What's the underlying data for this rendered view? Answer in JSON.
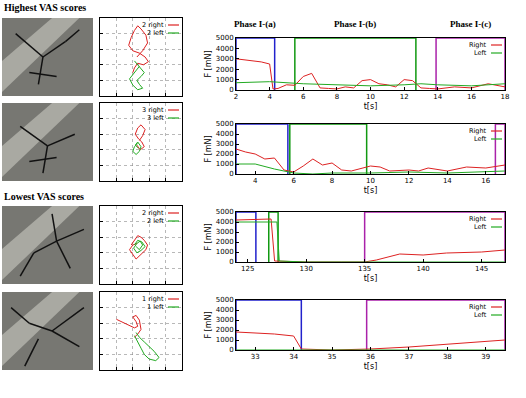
{
  "headings": [
    "Highest VAS scores",
    "Lowest VAS scores"
  ],
  "chart_data": [
    {
      "type": "line",
      "tick_labels": false,
      "grid": true,
      "legend": "upper right",
      "xlim": [
        0,
        10
      ],
      "ylim": [
        0,
        10
      ],
      "xticks": [
        0,
        2,
        4,
        6,
        8,
        10
      ],
      "yticks": [
        0,
        2,
        4,
        6,
        8,
        10
      ],
      "series": [
        {
          "name": "2 right",
          "color": "#dd2222",
          "x": [
            4.5,
            5.2,
            5.8,
            5.6,
            5.0,
            4.6,
            4.2,
            3.8,
            3.5,
            4.0,
            4.8,
            5.5,
            5.9,
            5.3,
            4.6,
            4.2,
            4.0
          ],
          "values": [
            5.0,
            5.8,
            6.8,
            7.8,
            8.6,
            9.0,
            8.4,
            7.5,
            6.5,
            5.8,
            5.5,
            5.0,
            4.4,
            4.0,
            4.2,
            3.6,
            3.0
          ]
        },
        {
          "name": "2 left",
          "color": "#22aa22",
          "x": [
            4.2,
            4.6,
            5.0,
            5.4,
            5.0,
            4.5,
            4.8,
            5.2,
            4.6,
            4.0,
            3.6,
            4.2,
            4.8
          ],
          "values": [
            4.5,
            4.0,
            3.5,
            3.0,
            2.5,
            2.0,
            1.5,
            1.0,
            0.8,
            1.4,
            2.2,
            3.0,
            3.8
          ]
        }
      ]
    },
    {
      "type": "line",
      "x_label": "t[s]",
      "y_label": "F [mN]",
      "grid": false,
      "legend": "upper right",
      "xlim": [
        2,
        18
      ],
      "xticks": [
        2,
        4,
        6,
        8,
        10,
        12,
        14,
        16,
        18
      ],
      "ylim": [
        0,
        5000
      ],
      "yticks": [
        0,
        1000,
        2000,
        3000,
        4000,
        5000
      ],
      "phases": [
        {
          "label": "Phase I-(a)",
          "color": "#2222cc",
          "start": 2,
          "end": 4.3
        },
        {
          "label": "Phase I-(b)",
          "color": "#119911",
          "start": 5.5,
          "end": 12.7
        },
        {
          "label": "Phase I-(c)",
          "color": "#aa22aa",
          "start": 13.9,
          "end": 18
        }
      ],
      "series": [
        {
          "name": "Right",
          "color": "#dd2222",
          "x": [
            2,
            2.5,
            3,
            3.5,
            4,
            4.2,
            4.5,
            5,
            5.5,
            6,
            6.5,
            7,
            7.5,
            8,
            8.5,
            9,
            9.5,
            10,
            10.5,
            11,
            11.5,
            12,
            12.5,
            13,
            13.5,
            14,
            15,
            16,
            17,
            18
          ],
          "values": [
            3000,
            2900,
            2800,
            2700,
            2500,
            100,
            150,
            500,
            450,
            1300,
            1600,
            200,
            150,
            100,
            300,
            200,
            900,
            1000,
            600,
            500,
            300,
            1000,
            900,
            200,
            150,
            100,
            300,
            200,
            600,
            300
          ]
        },
        {
          "name": "Left",
          "color": "#22aa22",
          "x": [
            2,
            4,
            6,
            8,
            10,
            12,
            13,
            14,
            16,
            18
          ],
          "values": [
            700,
            800,
            600,
            500,
            400,
            500,
            600,
            500,
            400,
            600
          ]
        }
      ]
    },
    {
      "type": "line",
      "tick_labels": false,
      "grid": true,
      "legend": "upper right",
      "xlim": [
        0,
        10
      ],
      "ylim": [
        0,
        10
      ],
      "xticks": [
        0,
        2,
        4,
        6,
        8,
        10
      ],
      "yticks": [
        0,
        2,
        4,
        6,
        8,
        10
      ],
      "series": [
        {
          "name": "3 right",
          "color": "#dd2222",
          "x": [
            4.8,
            5.2,
            5.5,
            5.0,
            4.6,
            4.3,
            4.7,
            5.1,
            5.4,
            4.9,
            4.5
          ],
          "values": [
            5.2,
            5.8,
            6.6,
            7.2,
            6.8,
            6.0,
            5.4,
            5.0,
            4.4,
            4.0,
            4.6
          ]
        },
        {
          "name": "3 left",
          "color": "#22aa22",
          "x": [
            4.6,
            4.2,
            4.0,
            4.4,
            4.8,
            5.0,
            4.6,
            4.3,
            4.7
          ],
          "values": [
            4.8,
            4.4,
            3.8,
            3.4,
            3.8,
            4.4,
            5.0,
            4.6,
            4.2
          ]
        }
      ]
    },
    {
      "type": "line",
      "x_label": "t[s]",
      "y_label": "F [mN]",
      "grid": false,
      "legend": "upper right",
      "xlim": [
        3,
        17
      ],
      "xticks": [
        4,
        6,
        8,
        10,
        12,
        14,
        16
      ],
      "ylim": [
        0,
        5000
      ],
      "yticks": [
        0,
        1000,
        2000,
        3000,
        4000,
        5000
      ],
      "phases": [
        {
          "color": "#2222cc",
          "start": 3,
          "end": 5.7
        },
        {
          "color": "#119911",
          "start": 5.8,
          "end": 9.8
        },
        {
          "color": "#aa22aa",
          "start": 16.5,
          "end": 17
        }
      ],
      "series": [
        {
          "name": "Right",
          "color": "#dd2222",
          "x": [
            3,
            3.5,
            4,
            4.5,
            5,
            5.5,
            6,
            6.5,
            7,
            7.5,
            8,
            8.5,
            9,
            10,
            10.5,
            11,
            12,
            12.5,
            13,
            14,
            15,
            16,
            17
          ],
          "values": [
            2500,
            2200,
            2000,
            1500,
            1600,
            400,
            200,
            800,
            1500,
            900,
            1100,
            400,
            300,
            800,
            700,
            300,
            400,
            300,
            600,
            300,
            700,
            600,
            900
          ]
        },
        {
          "name": "Left",
          "color": "#22aa22",
          "x": [
            3,
            4,
            5,
            6,
            7,
            8,
            10,
            12,
            14,
            16,
            17
          ],
          "values": [
            1000,
            1000,
            500,
            100,
            0,
            100,
            100,
            200,
            100,
            200,
            300
          ]
        }
      ]
    },
    {
      "type": "line",
      "tick_labels": false,
      "grid": true,
      "legend": "upper right",
      "xlim": [
        0,
        10
      ],
      "ylim": [
        0,
        10
      ],
      "xticks": [
        0,
        2,
        4,
        6,
        8,
        10
      ],
      "yticks": [
        0,
        2,
        4,
        6,
        8,
        10
      ],
      "series": [
        {
          "name": "2 right",
          "color": "#dd2222",
          "x": [
            3.8,
            4.2,
            4.6,
            5.0,
            5.4,
            5.8,
            5.6,
            5.2,
            4.8,
            4.4,
            4.0,
            3.6,
            4.0,
            4.5
          ],
          "values": [
            5.0,
            5.6,
            6.2,
            6.0,
            5.6,
            5.0,
            4.4,
            4.0,
            3.6,
            3.2,
            3.8,
            4.4,
            5.0,
            5.2
          ]
        },
        {
          "name": "2 left",
          "color": "#22aa22",
          "x": [
            4.4,
            4.8,
            5.2,
            4.9,
            4.5,
            4.1,
            4.5,
            5.0,
            5.5,
            5.1,
            4.6,
            4.2
          ],
          "values": [
            4.8,
            4.4,
            5.0,
            5.5,
            5.2,
            4.6,
            4.0,
            4.3,
            4.8,
            5.4,
            5.6,
            5.0
          ]
        }
      ]
    },
    {
      "type": "line",
      "x_label": "t[s]",
      "y_label": "F [mN]",
      "grid": false,
      "legend": "upper right",
      "xlim": [
        124,
        147
      ],
      "xticks": [
        125,
        130,
        135,
        140,
        145
      ],
      "ylim": [
        0,
        5000
      ],
      "yticks": [
        0,
        1000,
        2000,
        3000,
        4000,
        5000
      ],
      "phases": [
        {
          "color": "#2222cc",
          "start": 124,
          "end": 125.7
        },
        {
          "color": "#119911",
          "start": 126.8,
          "end": 127.6
        },
        {
          "color": "#aa22aa",
          "start": 135,
          "end": 147
        }
      ],
      "series": [
        {
          "name": "Right",
          "color": "#dd2222",
          "x": [
            124,
            127,
            127.3,
            130,
            133,
            135,
            136,
            138,
            140,
            142,
            145,
            147
          ],
          "values": [
            4200,
            4300,
            100,
            0,
            0,
            0,
            200,
            800,
            700,
            900,
            1000,
            1200
          ]
        },
        {
          "name": "Left",
          "color": "#22aa22",
          "x": [
            124,
            127.5,
            127.7,
            130,
            135,
            140,
            147
          ],
          "values": [
            4000,
            4000,
            100,
            0,
            0,
            0,
            0
          ]
        }
      ]
    },
    {
      "type": "line",
      "tick_labels": false,
      "grid": true,
      "legend": "upper right",
      "xlim": [
        0,
        10
      ],
      "ylim": [
        0,
        10
      ],
      "xticks": [
        0,
        2,
        4,
        6,
        8,
        10
      ],
      "yticks": [
        0,
        2,
        4,
        6,
        8,
        10
      ],
      "series": [
        {
          "name": "1 right",
          "color": "#dd2222",
          "x": [
            2.0,
            2.6,
            3.2,
            3.8,
            4.2,
            4.6,
            4.4,
            4.0,
            4.4,
            4.8,
            5.0,
            4.6,
            4.2
          ],
          "values": [
            6.5,
            6.2,
            5.8,
            5.6,
            5.4,
            5.6,
            6.2,
            6.8,
            7.0,
            6.4,
            5.2,
            4.6,
            4.2
          ]
        },
        {
          "name": "1 left",
          "color": "#22aa22",
          "x": [
            4.4,
            4.8,
            5.4,
            6.0,
            6.6,
            7.2,
            6.8,
            6.0,
            5.4,
            5.0,
            4.6,
            4.2
          ],
          "values": [
            4.8,
            4.2,
            3.6,
            3.0,
            2.4,
            1.6,
            1.2,
            1.4,
            2.0,
            2.8,
            3.6,
            4.4
          ]
        }
      ]
    },
    {
      "type": "line",
      "x_label": "t[s]",
      "y_label": "F [mN]",
      "grid": false,
      "legend": "upper right",
      "xlim": [
        32.5,
        39.5
      ],
      "xticks": [
        33,
        34,
        35,
        36,
        37,
        38,
        39
      ],
      "ylim": [
        0,
        5000
      ],
      "yticks": [
        0,
        1000,
        2000,
        3000,
        4000,
        5000
      ],
      "phases": [
        {
          "color": "#2222cc",
          "start": 32.5,
          "end": 34.2
        },
        {
          "color": "#aa22aa",
          "start": 35.9,
          "end": 39.5
        }
      ],
      "series": [
        {
          "name": "Right",
          "color": "#dd2222",
          "x": [
            32.5,
            33,
            33.5,
            34,
            34.2,
            35,
            36,
            37,
            38,
            39,
            39.5
          ],
          "values": [
            1800,
            1700,
            1600,
            1400,
            100,
            0,
            100,
            300,
            600,
            900,
            1000
          ]
        },
        {
          "name": "Left",
          "color": "#22aa22",
          "x": [
            32.5,
            39.5
          ],
          "values": [
            0,
            0
          ]
        }
      ]
    }
  ]
}
